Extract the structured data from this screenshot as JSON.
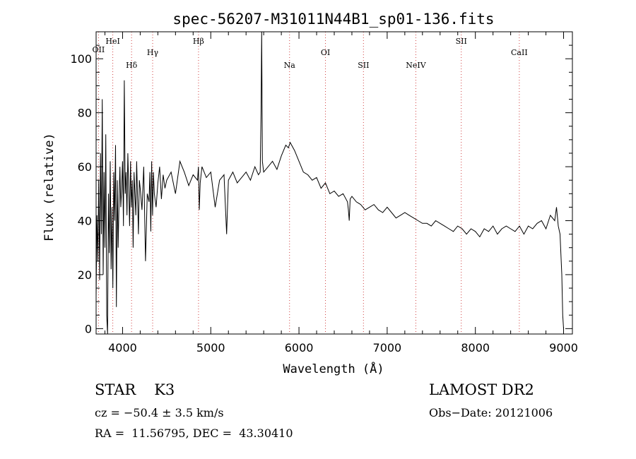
{
  "chart_data": {
    "type": "line",
    "title": "spec-56207-M31011N44B1_sp01-136.fits",
    "xlabel": "Wavelength (Å)",
    "ylabel": "Flux (relative)",
    "xlim": [
      3700,
      9100
    ],
    "ylim": [
      -2,
      110
    ],
    "xticks": [
      4000,
      5000,
      6000,
      7000,
      8000,
      9000
    ],
    "yticks": [
      0,
      20,
      40,
      60,
      80,
      100
    ],
    "grid": false,
    "line_color": "#000000",
    "marker_color": "#d04040",
    "lines": [
      {
        "name": "OII",
        "wavelength": 3727
      },
      {
        "name": "HeI",
        "wavelength": 3889
      },
      {
        "name": "Hδ",
        "wavelength": 4102
      },
      {
        "name": "Hγ",
        "wavelength": 4341
      },
      {
        "name": "Hβ",
        "wavelength": 4861
      },
      {
        "name": "Na",
        "wavelength": 5893
      },
      {
        "name": "OI",
        "wavelength": 6300
      },
      {
        "name": "SII",
        "wavelength": 6731
      },
      {
        "name": "NeIV",
        "wavelength": 7325
      },
      {
        "name": "SII",
        "wavelength": 7840
      },
      {
        "name": "CaII",
        "wavelength": 8498
      }
    ],
    "spectrum": {
      "x": [
        3700,
        3710,
        3720,
        3730,
        3740,
        3750,
        3760,
        3770,
        3780,
        3790,
        3800,
        3810,
        3820,
        3830,
        3840,
        3850,
        3860,
        3870,
        3880,
        3890,
        3900,
        3910,
        3920,
        3930,
        3940,
        3950,
        3960,
        3970,
        3980,
        3990,
        4000,
        4010,
        4020,
        4030,
        4040,
        4050,
        4060,
        4070,
        4080,
        4090,
        4100,
        4110,
        4120,
        4130,
        4140,
        4150,
        4160,
        4170,
        4180,
        4190,
        4200,
        4220,
        4240,
        4260,
        4280,
        4300,
        4310,
        4320,
        4330,
        4340,
        4350,
        4360,
        4380,
        4400,
        4420,
        4440,
        4460,
        4480,
        4500,
        4550,
        4600,
        4650,
        4700,
        4750,
        4800,
        4850,
        4860,
        4870,
        4880,
        4900,
        4950,
        5000,
        5050,
        5100,
        5150,
        5180,
        5200,
        5250,
        5300,
        5350,
        5400,
        5450,
        5500,
        5540,
        5560,
        5570,
        5577,
        5585,
        5600,
        5650,
        5700,
        5750,
        5800,
        5850,
        5880,
        5900,
        5950,
        6000,
        6050,
        6100,
        6150,
        6200,
        6250,
        6300,
        6350,
        6400,
        6450,
        6500,
        6550,
        6560,
        6570,
        6580,
        6600,
        6650,
        6700,
        6750,
        6800,
        6850,
        6900,
        6950,
        7000,
        7050,
        7100,
        7150,
        7200,
        7250,
        7300,
        7350,
        7400,
        7450,
        7500,
        7550,
        7600,
        7650,
        7700,
        7750,
        7800,
        7850,
        7900,
        7950,
        8000,
        8050,
        8100,
        8150,
        8200,
        8250,
        8300,
        8350,
        8400,
        8450,
        8500,
        8550,
        8600,
        8650,
        8700,
        8750,
        8800,
        8850,
        8900,
        8920,
        8940,
        8960,
        8980,
        8990,
        9000
      ],
      "y": [
        12,
        42,
        25,
        55,
        18,
        65,
        35,
        85,
        20,
        58,
        30,
        72,
        5,
        -2,
        50,
        28,
        62,
        22,
        45,
        15,
        58,
        40,
        68,
        8,
        55,
        30,
        48,
        60,
        45,
        52,
        62,
        38,
        92,
        50,
        58,
        42,
        65,
        52,
        38,
        62,
        45,
        55,
        30,
        58,
        50,
        42,
        62,
        48,
        35,
        55,
        52,
        44,
        60,
        25,
        50,
        47,
        58,
        36,
        62,
        42,
        58,
        50,
        45,
        54,
        60,
        48,
        57,
        52,
        55,
        58,
        50,
        62,
        58,
        53,
        57,
        55,
        60,
        44,
        54,
        60,
        56,
        58,
        45,
        55,
        57,
        35,
        55,
        58,
        54,
        56,
        58,
        55,
        60,
        57,
        58,
        80,
        110,
        62,
        58,
        60,
        62,
        59,
        64,
        68,
        67,
        69,
        66,
        62,
        58,
        57,
        55,
        56,
        52,
        54,
        50,
        51,
        49,
        50,
        47,
        44,
        40,
        48,
        49,
        47,
        46,
        44,
        45,
        46,
        44,
        43,
        45,
        43,
        41,
        42,
        43,
        42,
        41,
        40,
        39,
        39,
        38,
        40,
        39,
        38,
        37,
        36,
        38,
        37,
        35,
        37,
        36,
        34,
        37,
        36,
        38,
        35,
        37,
        38,
        37,
        36,
        38,
        35,
        38,
        37,
        39,
        40,
        37,
        42,
        40,
        45,
        38,
        35,
        20,
        5,
        0
      ]
    }
  },
  "info": {
    "object_class": "STAR",
    "subclass": "K3",
    "survey": "LAMOST DR2",
    "cz": "cz = −50.4 ± 3.5 km/s",
    "obs_date": "Obs−Date: 20121006",
    "radec": "RA =  11.56795, DEC =  43.30410"
  }
}
